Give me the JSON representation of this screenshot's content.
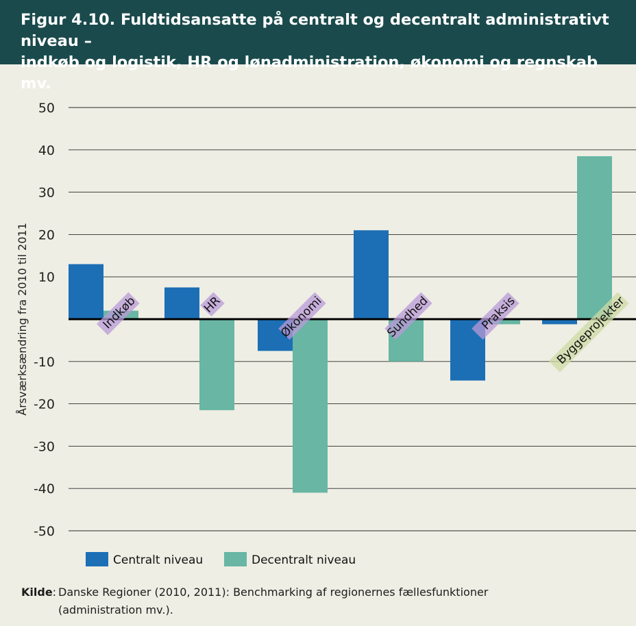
{
  "header": {
    "title_line1": "Figur 4.10. Fuldtidsansatte på centralt og decentralt administrativt niveau –",
    "title_line2": "indkøb og logistik, HR og lønadministration, økonomi og regnskab mv."
  },
  "chart_data": {
    "type": "bar",
    "categories": [
      "Indkøb",
      "HR",
      "Økonomi",
      "Sundhed",
      "Praksis",
      "Byggeprojekter"
    ],
    "series": [
      {
        "name": "Centralt niveau",
        "values": [
          13,
          7.5,
          -7.5,
          21,
          -14.5,
          -1.2
        ],
        "color": "#1c6fb5"
      },
      {
        "name": "Decentralt niveau",
        "values": [
          2,
          -21.5,
          -41,
          -10,
          -1.2,
          38.5
        ],
        "color": "#68b6a3"
      }
    ],
    "ylabel": "Årsværksændring fra 2010 til 2011",
    "ylim": [
      -50,
      50
    ],
    "yticks": [
      50,
      40,
      30,
      20,
      10,
      -10,
      -20,
      -30,
      -40,
      -50
    ],
    "grid": true,
    "legend": "bottom",
    "category_label_highlight": "#b99ad8",
    "category_label_highlight_last": "#cdd9a4"
  },
  "source": {
    "label": "Kilde",
    "separator": ":",
    "text_line1": "Danske Regioner (2010, 2011): Benchmarking af regionernes fællesfunktioner",
    "text_line2": "(administration mv.)."
  }
}
